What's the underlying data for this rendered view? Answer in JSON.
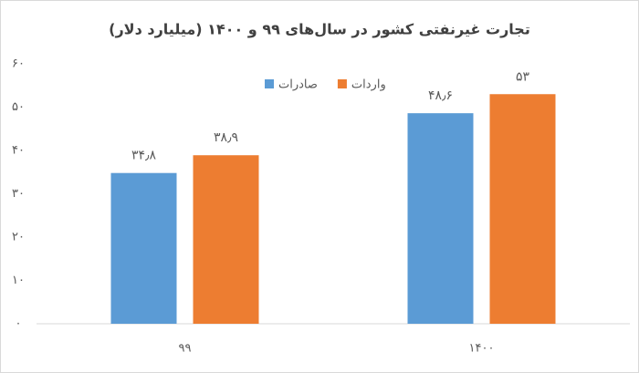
{
  "chart_data": {
    "type": "bar",
    "title": "تجارت غیرنفتی کشور در سال‌های ۹۹ و ۱۴۰۰ (میلیارد دلار)",
    "categories": [
      "۹۹",
      "۱۴۰۰"
    ],
    "series": [
      {
        "name": "صادرات",
        "color": "#5b9bd5",
        "values": [
          34.8,
          48.6
        ],
        "value_labels": [
          "۳۴٫۸",
          "۴۸٫۶"
        ]
      },
      {
        "name": "واردات",
        "color": "#ed7d31",
        "values": [
          38.9,
          53
        ],
        "value_labels": [
          "۳۸٫۹",
          "۵۳"
        ]
      }
    ],
    "ylim": [
      0,
      60
    ],
    "yticks": [
      {
        "value": 0,
        "label": "۰"
      },
      {
        "value": 10,
        "label": "۱۰"
      },
      {
        "value": 20,
        "label": "۲۰"
      },
      {
        "value": 30,
        "label": "۳۰"
      },
      {
        "value": 40,
        "label": "۴۰"
      },
      {
        "value": 50,
        "label": "۵۰"
      },
      {
        "value": 60,
        "label": "۶۰"
      }
    ],
    "grid": false
  }
}
